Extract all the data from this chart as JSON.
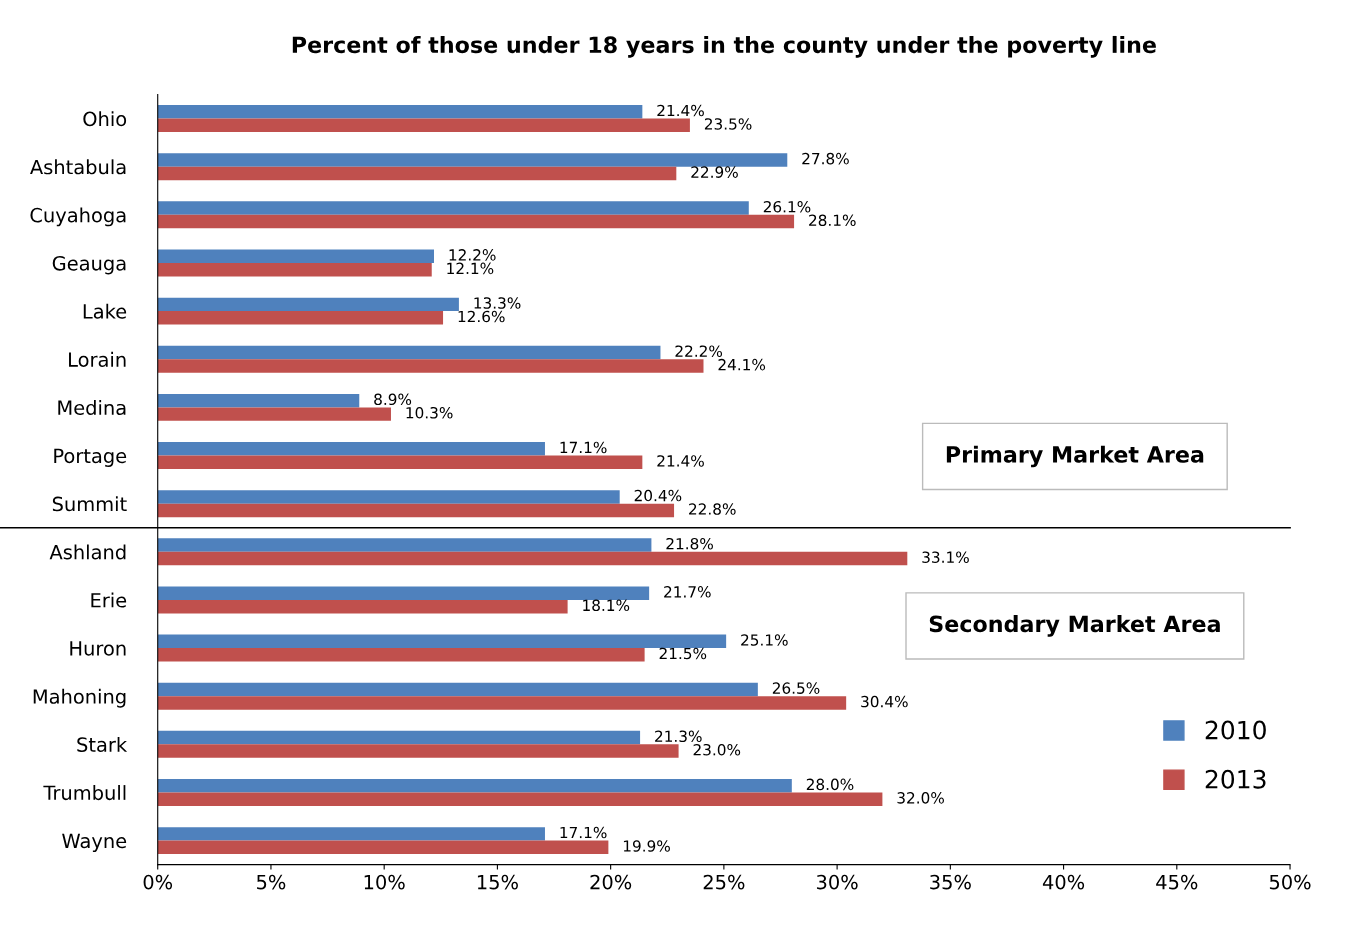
{
  "chart_data": {
    "type": "bar",
    "orientation": "horizontal",
    "title": "Percent of those under 18 years in the county under the poverty line",
    "categories": [
      "Ohio",
      "Ashtabula",
      "Cuyahoga",
      "Geauga",
      "Lake",
      "Lorain",
      "Medina",
      "Portage",
      "Summit",
      "Ashland",
      "Erie",
      "Huron",
      "Mahoning",
      "Stark",
      "Trumbull",
      "Wayne"
    ],
    "series": [
      {
        "name": "2010",
        "color": "#4f81bd",
        "values": [
          21.4,
          27.8,
          26.1,
          12.2,
          13.3,
          22.2,
          8.9,
          17.1,
          20.4,
          21.8,
          21.7,
          25.1,
          26.5,
          21.3,
          28.0,
          17.1
        ],
        "value_labels": [
          "21.4%",
          "27.8%",
          "26.1%",
          "12.2%",
          "13.3%",
          "22.2%",
          "8.9%",
          "17.1%",
          "20.4%",
          "21.8%",
          "21.7%",
          "25.1%",
          "26.5%",
          "21.3%",
          "28.0%",
          "17.1%"
        ]
      },
      {
        "name": "2013",
        "color": "#c0504d",
        "values": [
          23.5,
          22.9,
          28.1,
          12.1,
          12.6,
          24.1,
          10.3,
          21.4,
          22.8,
          33.1,
          18.1,
          21.5,
          30.4,
          23.0,
          32.0,
          19.9
        ],
        "value_labels": [
          "23.5%",
          "22.9%",
          "28.1%",
          "12.1%",
          "12.6%",
          "24.1%",
          "10.3%",
          "21.4%",
          "22.8%",
          "33.1%",
          "18.1%",
          "21.5%",
          "30.4%",
          "23.0%",
          "32.0%",
          "19.9%"
        ]
      }
    ],
    "xlim": [
      0,
      50
    ],
    "xticks": [
      {
        "value": 0,
        "label": "0%"
      },
      {
        "value": 5,
        "label": "5%"
      },
      {
        "value": 10,
        "label": "10%"
      },
      {
        "value": 15,
        "label": "15%"
      },
      {
        "value": 20,
        "label": "20%"
      },
      {
        "value": 25,
        "label": "25%"
      },
      {
        "value": 30,
        "label": "30%"
      },
      {
        "value": 35,
        "label": "35%"
      },
      {
        "value": 40,
        "label": "40%"
      },
      {
        "value": 45,
        "label": "45%"
      },
      {
        "value": 50,
        "label": "50%"
      }
    ],
    "annotations": [
      "Primary Market Area",
      "Secondary Market Area"
    ],
    "legend": "right",
    "grid": false
  }
}
